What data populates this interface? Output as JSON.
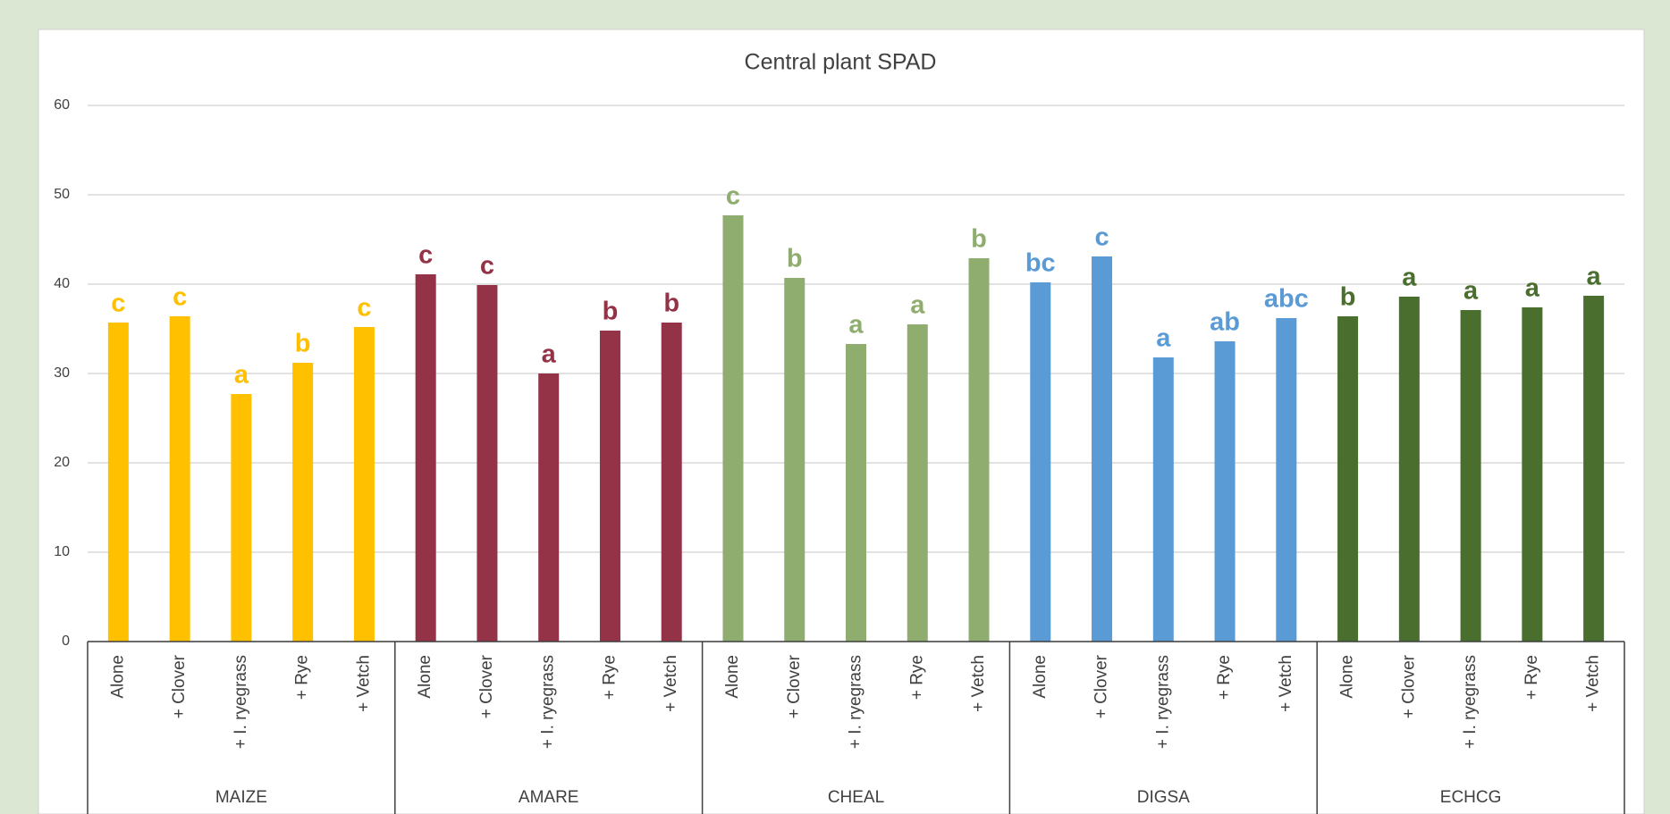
{
  "chart_data": {
    "type": "bar",
    "title": "Central plant SPAD",
    "ylim": [
      0,
      60
    ],
    "yticks": [
      0,
      10,
      20,
      30,
      40,
      50,
      60
    ],
    "grid": true,
    "groups": [
      {
        "name": "MAIZE",
        "color": "#ffc000",
        "categories": [
          "Alone",
          "+ Clover",
          "+ I. ryegrass",
          "+ Rye",
          "+ Vetch"
        ],
        "values": [
          35.7,
          36.4,
          27.7,
          31.2,
          35.2
        ],
        "letters": [
          "c",
          "c",
          "a",
          "b",
          "c"
        ]
      },
      {
        "name": "AMARE",
        "color": "#943348",
        "categories": [
          "Alone",
          "+ Clover",
          "+ I. ryegrass",
          "+ Rye",
          "+ Vetch"
        ],
        "values": [
          41.1,
          39.9,
          30.0,
          34.8,
          35.7
        ],
        "letters": [
          "c",
          "c",
          "a",
          "b",
          "b"
        ]
      },
      {
        "name": "CHEAL",
        "color": "#8fad6e",
        "categories": [
          "Alone",
          "+ Clover",
          "+ I. ryegrass",
          "+ Rye",
          "+ Vetch"
        ],
        "values": [
          47.7,
          40.7,
          33.3,
          35.5,
          42.9
        ],
        "letters": [
          "c",
          "b",
          "a",
          "a",
          "b"
        ]
      },
      {
        "name": "DIGSA",
        "color": "#5b9bd5",
        "categories": [
          "Alone",
          "+ Clover",
          "+ I. ryegrass",
          "+ Rye",
          "+ Vetch"
        ],
        "values": [
          40.2,
          43.1,
          31.8,
          33.6,
          36.2
        ],
        "letters": [
          "bc",
          "c",
          "a",
          "ab",
          "abc"
        ]
      },
      {
        "name": "ECHCG",
        "color": "#4a6e2e",
        "categories": [
          "Alone",
          "+ Clover",
          "+ I. ryegrass",
          "+ Rye",
          "+ Vetch"
        ],
        "values": [
          36.4,
          38.6,
          37.1,
          37.4,
          38.7
        ],
        "letters": [
          "b",
          "a",
          "a",
          "a",
          "a"
        ]
      }
    ]
  }
}
